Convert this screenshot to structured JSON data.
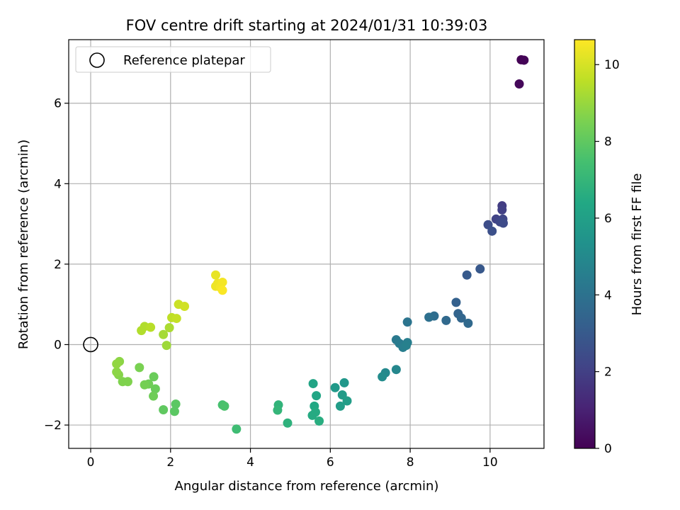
{
  "chart_data": {
    "type": "scatter",
    "title": "FOV centre drift starting at 2024/01/31 10:39:03",
    "xlabel": "Angular distance from reference (arcmin)",
    "ylabel": "Rotation from reference (arcmin)",
    "xlim": [
      -0.55,
      11.35
    ],
    "ylim": [
      -2.58,
      7.58
    ],
    "xticks": [
      0,
      2,
      4,
      6,
      8,
      10
    ],
    "yticks": [
      -2,
      0,
      2,
      4,
      6
    ],
    "xtick_labels": [
      "0",
      "2",
      "4",
      "6",
      "8",
      "10"
    ],
    "ytick_labels": [
      "−2",
      "0",
      "2",
      "4",
      "6"
    ],
    "grid": true,
    "legend": {
      "position": "upper-left",
      "entries": [
        {
          "label": "Reference platepar",
          "marker": "open-circle"
        }
      ]
    },
    "reference_point": {
      "x": 0,
      "y": 0
    },
    "colorbar": {
      "label": "Hours from first FF file",
      "colormap": "viridis",
      "range": [
        0,
        10.65
      ],
      "ticks": [
        0,
        2,
        4,
        6,
        8,
        10
      ],
      "tick_labels": [
        "0",
        "2",
        "4",
        "6",
        "8",
        "10"
      ]
    },
    "points": [
      {
        "x": 10.78,
        "y": 7.08,
        "c": 0.0
      },
      {
        "x": 10.85,
        "y": 7.07,
        "c": 0.1
      },
      {
        "x": 10.73,
        "y": 6.48,
        "c": 0.2
      },
      {
        "x": 10.3,
        "y": 3.45,
        "c": 1.9
      },
      {
        "x": 10.3,
        "y": 3.35,
        "c": 2.0
      },
      {
        "x": 10.15,
        "y": 3.12,
        "c": 2.1
      },
      {
        "x": 10.32,
        "y": 3.12,
        "c": 2.2
      },
      {
        "x": 10.25,
        "y": 3.05,
        "c": 2.3
      },
      {
        "x": 10.33,
        "y": 3.02,
        "c": 2.4
      },
      {
        "x": 9.95,
        "y": 2.98,
        "c": 2.5
      },
      {
        "x": 10.05,
        "y": 2.82,
        "c": 2.6
      },
      {
        "x": 9.75,
        "y": 1.88,
        "c": 2.9
      },
      {
        "x": 9.42,
        "y": 1.73,
        "c": 3.0
      },
      {
        "x": 9.15,
        "y": 1.05,
        "c": 3.3
      },
      {
        "x": 9.2,
        "y": 0.77,
        "c": 3.4
      },
      {
        "x": 9.28,
        "y": 0.66,
        "c": 3.5
      },
      {
        "x": 8.9,
        "y": 0.6,
        "c": 3.6
      },
      {
        "x": 9.45,
        "y": 0.53,
        "c": 3.6
      },
      {
        "x": 8.6,
        "y": 0.71,
        "c": 3.8
      },
      {
        "x": 8.47,
        "y": 0.68,
        "c": 3.9
      },
      {
        "x": 7.93,
        "y": 0.56,
        "c": 4.1
      },
      {
        "x": 7.65,
        "y": 0.12,
        "c": 4.3
      },
      {
        "x": 7.73,
        "y": 0.03,
        "c": 4.4
      },
      {
        "x": 7.82,
        "y": -0.07,
        "c": 4.5
      },
      {
        "x": 7.93,
        "y": 0.05,
        "c": 4.5
      },
      {
        "x": 7.9,
        "y": -0.02,
        "c": 4.6
      },
      {
        "x": 7.65,
        "y": -0.62,
        "c": 4.9
      },
      {
        "x": 7.38,
        "y": -0.7,
        "c": 5.0
      },
      {
        "x": 7.3,
        "y": -0.8,
        "c": 5.1
      },
      {
        "x": 6.35,
        "y": -0.95,
        "c": 5.6
      },
      {
        "x": 6.12,
        "y": -1.07,
        "c": 5.7
      },
      {
        "x": 6.3,
        "y": -1.25,
        "c": 5.8
      },
      {
        "x": 6.42,
        "y": -1.4,
        "c": 5.9
      },
      {
        "x": 6.25,
        "y": -1.53,
        "c": 5.9
      },
      {
        "x": 5.57,
        "y": -0.97,
        "c": 6.2
      },
      {
        "x": 5.65,
        "y": -1.27,
        "c": 6.3
      },
      {
        "x": 5.6,
        "y": -1.53,
        "c": 6.4
      },
      {
        "x": 5.63,
        "y": -1.68,
        "c": 6.5
      },
      {
        "x": 5.55,
        "y": -1.76,
        "c": 6.5
      },
      {
        "x": 5.72,
        "y": -1.9,
        "c": 6.6
      },
      {
        "x": 4.93,
        "y": -1.95,
        "c": 6.8
      },
      {
        "x": 4.7,
        "y": -1.5,
        "c": 6.9
      },
      {
        "x": 4.68,
        "y": -1.63,
        "c": 7.0
      },
      {
        "x": 3.65,
        "y": -2.1,
        "c": 7.3
      },
      {
        "x": 3.3,
        "y": -1.5,
        "c": 7.5
      },
      {
        "x": 3.35,
        "y": -1.53,
        "c": 7.6
      },
      {
        "x": 2.13,
        "y": -1.48,
        "c": 7.9
      },
      {
        "x": 2.1,
        "y": -1.66,
        "c": 7.9
      },
      {
        "x": 1.82,
        "y": -1.62,
        "c": 8.0
      },
      {
        "x": 1.58,
        "y": -0.8,
        "c": 8.2
      },
      {
        "x": 1.62,
        "y": -1.1,
        "c": 8.2
      },
      {
        "x": 1.57,
        "y": -1.28,
        "c": 8.3
      },
      {
        "x": 1.45,
        "y": -0.98,
        "c": 8.3
      },
      {
        "x": 1.35,
        "y": -1.0,
        "c": 8.4
      },
      {
        "x": 1.22,
        "y": -0.57,
        "c": 8.5
      },
      {
        "x": 0.93,
        "y": -0.92,
        "c": 8.6
      },
      {
        "x": 0.8,
        "y": -0.92,
        "c": 8.6
      },
      {
        "x": 0.7,
        "y": -0.75,
        "c": 8.7
      },
      {
        "x": 0.65,
        "y": -0.68,
        "c": 8.8
      },
      {
        "x": 0.72,
        "y": -0.42,
        "c": 8.8
      },
      {
        "x": 0.65,
        "y": -0.48,
        "c": 8.9
      },
      {
        "x": 1.9,
        "y": -0.02,
        "c": 9.1
      },
      {
        "x": 1.82,
        "y": 0.25,
        "c": 9.2
      },
      {
        "x": 1.97,
        "y": 0.42,
        "c": 9.3
      },
      {
        "x": 1.27,
        "y": 0.35,
        "c": 9.4
      },
      {
        "x": 1.35,
        "y": 0.45,
        "c": 9.4
      },
      {
        "x": 1.5,
        "y": 0.43,
        "c": 9.5
      },
      {
        "x": 2.03,
        "y": 0.67,
        "c": 9.6
      },
      {
        "x": 2.15,
        "y": 0.65,
        "c": 9.7
      },
      {
        "x": 2.2,
        "y": 1.0,
        "c": 9.8
      },
      {
        "x": 2.35,
        "y": 0.95,
        "c": 9.9
      },
      {
        "x": 3.13,
        "y": 1.73,
        "c": 10.3
      },
      {
        "x": 3.18,
        "y": 1.52,
        "c": 10.4
      },
      {
        "x": 3.13,
        "y": 1.45,
        "c": 10.4
      },
      {
        "x": 3.25,
        "y": 1.42,
        "c": 10.5
      },
      {
        "x": 3.3,
        "y": 1.55,
        "c": 10.5
      },
      {
        "x": 3.3,
        "y": 1.35,
        "c": 10.6
      }
    ]
  }
}
